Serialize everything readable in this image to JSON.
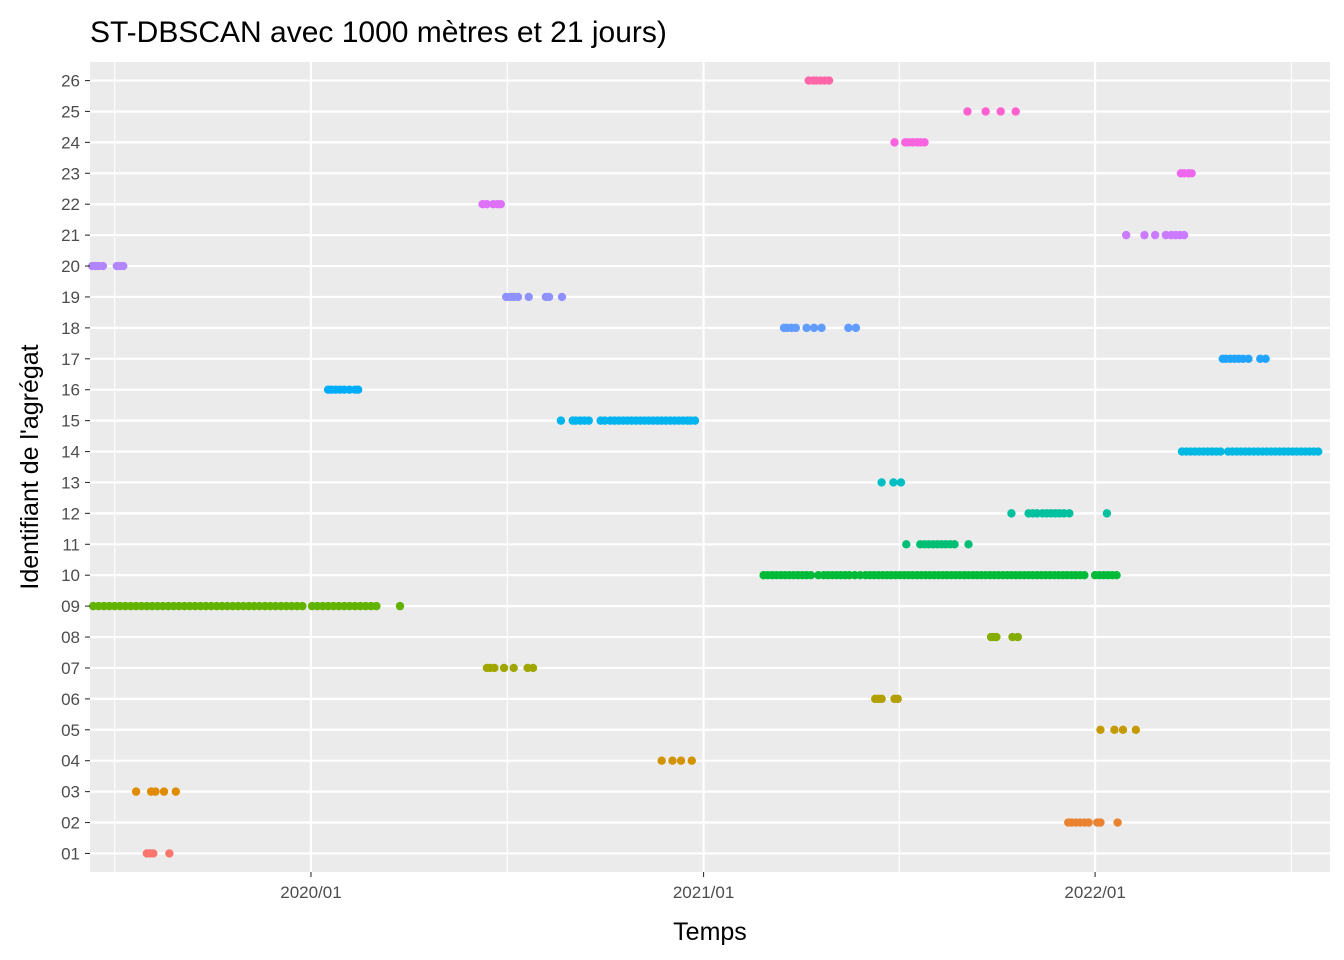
{
  "chart_data": {
    "type": "scatter",
    "title": "ST-DBSCAN avec 1000 mètres et 21 jours)",
    "xlabel": "Temps",
    "ylabel": "Identifiant de l'agrégat",
    "x_axis_type": "date",
    "xlim": [
      "2019-06-09",
      "2022-08-08"
    ],
    "x_ticks": [
      "2020-01-01",
      "2021-01-01",
      "2022-01-01"
    ],
    "x_tick_labels": [
      "2020/01",
      "2021/01",
      "2022/01"
    ],
    "y_categories": [
      "01",
      "02",
      "03",
      "04",
      "05",
      "06",
      "07",
      "08",
      "09",
      "10",
      "11",
      "12",
      "13",
      "14",
      "15",
      "16",
      "17",
      "18",
      "19",
      "20",
      "21",
      "22",
      "23",
      "24",
      "25",
      "26"
    ],
    "grid": true,
    "legend": "none",
    "panel_background": "#ebebeb",
    "grid_color": "#ffffff",
    "series": [
      {
        "cluster": "01",
        "color": "#F8766D",
        "x": [
          "2019-08-01",
          "2019-08-04",
          "2019-08-07",
          "2019-08-22"
        ]
      },
      {
        "cluster": "02",
        "color": "#EA8331",
        "x": [
          "2021-12-07",
          "2021-12-10",
          "2021-12-14",
          "2021-12-18",
          "2021-12-22",
          "2021-12-26",
          "2022-01-03",
          "2022-01-06",
          "2022-01-22"
        ]
      },
      {
        "cluster": "03",
        "color": "#E08B00",
        "x": [
          "2019-07-22",
          "2019-08-05",
          "2019-08-09",
          "2019-08-17",
          "2019-08-28"
        ]
      },
      {
        "cluster": "04",
        "color": "#D39200",
        "x": [
          "2020-11-23",
          "2020-12-03",
          "2020-12-11",
          "2020-12-21"
        ]
      },
      {
        "cluster": "05",
        "color": "#C49A00",
        "x": [
          "2022-01-06",
          "2022-01-19",
          "2022-01-27",
          "2022-02-08"
        ]
      },
      {
        "cluster": "06",
        "color": "#B3A000",
        "x": [
          "2021-06-10",
          "2021-06-13",
          "2021-06-16",
          "2021-06-28",
          "2021-07-01"
        ]
      },
      {
        "cluster": "07",
        "color": "#9FA600",
        "x": [
          "2020-06-13",
          "2020-06-16",
          "2020-06-20",
          "2020-06-29",
          "2020-07-08",
          "2020-07-21",
          "2020-07-26"
        ]
      },
      {
        "cluster": "08",
        "color": "#85AD00",
        "x": [
          "2021-09-26",
          "2021-09-28",
          "2021-10-01",
          "2021-10-16",
          "2021-10-21"
        ]
      },
      {
        "cluster": "09",
        "color": "#62B200",
        "x": [
          "2019-06-12",
          "2019-06-17",
          "2019-06-22",
          "2019-06-27",
          "2019-07-02",
          "2019-07-07",
          "2019-07-12",
          "2019-07-17",
          "2019-07-22",
          "2019-07-27",
          "2019-08-01",
          "2019-08-06",
          "2019-08-11",
          "2019-08-16",
          "2019-08-21",
          "2019-08-26",
          "2019-08-31",
          "2019-09-05",
          "2019-09-10",
          "2019-09-15",
          "2019-09-20",
          "2019-09-25",
          "2019-09-30",
          "2019-10-05",
          "2019-10-10",
          "2019-10-15",
          "2019-10-20",
          "2019-10-25",
          "2019-10-30",
          "2019-11-04",
          "2019-11-09",
          "2019-11-14",
          "2019-11-19",
          "2019-11-24",
          "2019-11-29",
          "2019-12-04",
          "2019-12-09",
          "2019-12-14",
          "2019-12-19",
          "2019-12-24",
          "2020-01-02",
          "2020-01-07",
          "2020-01-12",
          "2020-01-17",
          "2020-01-22",
          "2020-01-27",
          "2020-02-01",
          "2020-02-06",
          "2020-02-11",
          "2020-02-16",
          "2020-02-21",
          "2020-02-26",
          "2020-03-02",
          "2020-03-24"
        ]
      },
      {
        "cluster": "10",
        "color": "#00BA38",
        "x": [
          "2021-02-26",
          "2021-03-02",
          "2021-03-06",
          "2021-03-10",
          "2021-03-14",
          "2021-03-18",
          "2021-03-22",
          "2021-03-26",
          "2021-03-30",
          "2021-04-03",
          "2021-04-07",
          "2021-04-11",
          "2021-04-18",
          "2021-04-23",
          "2021-04-27",
          "2021-05-01",
          "2021-05-05",
          "2021-05-09",
          "2021-05-13",
          "2021-05-17",
          "2021-05-22",
          "2021-05-27",
          "2021-06-01",
          "2021-06-05",
          "2021-06-09",
          "2021-06-13",
          "2021-06-17",
          "2021-06-21",
          "2021-06-25",
          "2021-06-29",
          "2021-07-03",
          "2021-07-07",
          "2021-07-11",
          "2021-07-15",
          "2021-07-19",
          "2021-07-23",
          "2021-07-27",
          "2021-07-31",
          "2021-08-04",
          "2021-08-08",
          "2021-08-12",
          "2021-08-16",
          "2021-08-20",
          "2021-08-24",
          "2021-08-28",
          "2021-09-01",
          "2021-09-05",
          "2021-09-09",
          "2021-09-13",
          "2021-09-17",
          "2021-09-21",
          "2021-09-25",
          "2021-09-29",
          "2021-10-03",
          "2021-10-07",
          "2021-10-11",
          "2021-10-15",
          "2021-10-19",
          "2021-10-23",
          "2021-10-27",
          "2021-10-31",
          "2021-11-04",
          "2021-11-08",
          "2021-11-12",
          "2021-11-16",
          "2021-11-20",
          "2021-11-24",
          "2021-11-28",
          "2021-12-02",
          "2021-12-06",
          "2021-12-10",
          "2021-12-14",
          "2021-12-18",
          "2021-12-22",
          "2022-01-01",
          "2022-01-05",
          "2022-01-09",
          "2022-01-13",
          "2022-01-17",
          "2022-01-21"
        ]
      },
      {
        "cluster": "11",
        "color": "#00BF74",
        "x": [
          "2021-07-09",
          "2021-07-22",
          "2021-07-26",
          "2021-07-30",
          "2021-08-03",
          "2021-08-07",
          "2021-08-11",
          "2021-08-15",
          "2021-08-19",
          "2021-08-23",
          "2021-09-05"
        ]
      },
      {
        "cluster": "12",
        "color": "#00C19F",
        "x": [
          "2021-10-15",
          "2021-10-31",
          "2021-11-04",
          "2021-11-08",
          "2021-11-13",
          "2021-11-17",
          "2021-11-21",
          "2021-11-25",
          "2021-11-29",
          "2021-12-03",
          "2021-12-08",
          "2022-01-12"
        ]
      },
      {
        "cluster": "13",
        "color": "#00BFC4",
        "x": [
          "2021-06-16",
          "2021-06-27",
          "2021-07-04"
        ]
      },
      {
        "cluster": "14",
        "color": "#00B9E3",
        "x": [
          "2022-03-23",
          "2022-03-27",
          "2022-03-31",
          "2022-04-04",
          "2022-04-08",
          "2022-04-12",
          "2022-04-16",
          "2022-04-20",
          "2022-04-24",
          "2022-04-28",
          "2022-05-05",
          "2022-05-09",
          "2022-05-13",
          "2022-05-17",
          "2022-05-21",
          "2022-05-25",
          "2022-05-29",
          "2022-06-02",
          "2022-06-06",
          "2022-06-10",
          "2022-06-14",
          "2022-06-18",
          "2022-06-22",
          "2022-06-26",
          "2022-06-30",
          "2022-07-04",
          "2022-07-08",
          "2022-07-12",
          "2022-07-16",
          "2022-07-20",
          "2022-07-24",
          "2022-07-28"
        ]
      },
      {
        "cluster": "15",
        "color": "#00B4EF",
        "x": [
          "2020-08-21",
          "2020-09-01",
          "2020-09-04",
          "2020-09-08",
          "2020-09-12",
          "2020-09-16",
          "2020-09-27",
          "2020-10-01",
          "2020-10-06",
          "2020-10-10",
          "2020-10-14",
          "2020-10-18",
          "2020-10-22",
          "2020-10-26",
          "2020-10-30",
          "2020-11-03",
          "2020-11-07",
          "2020-11-11",
          "2020-11-15",
          "2020-11-19",
          "2020-11-23",
          "2020-11-27",
          "2020-12-01",
          "2020-12-05",
          "2020-12-09",
          "2020-12-13",
          "2020-12-17",
          "2020-12-20",
          "2020-12-24"
        ]
      },
      {
        "cluster": "16",
        "color": "#00ADFA",
        "x": [
          "2020-01-17",
          "2020-01-20",
          "2020-01-24",
          "2020-01-28",
          "2020-02-01",
          "2020-02-06",
          "2020-02-11",
          "2020-02-14"
        ]
      },
      {
        "cluster": "17",
        "color": "#20A4FF",
        "x": [
          "2022-04-30",
          "2022-05-03",
          "2022-05-07",
          "2022-05-11",
          "2022-05-15",
          "2022-05-19",
          "2022-05-24",
          "2022-06-04",
          "2022-06-09"
        ]
      },
      {
        "cluster": "18",
        "color": "#619CFF",
        "x": [
          "2021-03-17",
          "2021-03-20",
          "2021-03-24",
          "2021-03-28",
          "2021-04-07",
          "2021-04-14",
          "2021-04-21",
          "2021-05-16",
          "2021-05-23"
        ]
      },
      {
        "cluster": "19",
        "color": "#8F91FF",
        "x": [
          "2020-07-01",
          "2020-07-05",
          "2020-07-08",
          "2020-07-12",
          "2020-07-22",
          "2020-08-07",
          "2020-08-10",
          "2020-08-22"
        ]
      },
      {
        "cluster": "20",
        "color": "#B186FF",
        "x": [
          "2019-06-11",
          "2019-06-14",
          "2019-06-17",
          "2019-06-21",
          "2019-07-04",
          "2019-07-07",
          "2019-07-10"
        ]
      },
      {
        "cluster": "21",
        "color": "#CB7BFF",
        "x": [
          "2022-01-30",
          "2022-02-16",
          "2022-02-26",
          "2022-03-08",
          "2022-03-13",
          "2022-03-17",
          "2022-03-21",
          "2022-03-25"
        ]
      },
      {
        "cluster": "22",
        "color": "#DF70F8",
        "x": [
          "2020-06-09",
          "2020-06-13",
          "2020-06-19",
          "2020-06-23",
          "2020-06-26"
        ]
      },
      {
        "cluster": "23",
        "color": "#ED68ED",
        "x": [
          "2022-03-22",
          "2022-03-25",
          "2022-03-29",
          "2022-04-01"
        ]
      },
      {
        "cluster": "24",
        "color": "#F864E0",
        "x": [
          "2021-06-28",
          "2021-07-08",
          "2021-07-11",
          "2021-07-15",
          "2021-07-19",
          "2021-07-22",
          "2021-07-26"
        ]
      },
      {
        "cluster": "25",
        "color": "#FE61CF",
        "x": [
          "2021-09-04",
          "2021-09-21",
          "2021-10-05",
          "2021-10-19"
        ]
      },
      {
        "cluster": "26",
        "color": "#FF66A8",
        "x": [
          "2021-04-09",
          "2021-04-13",
          "2021-04-16",
          "2021-04-20",
          "2021-04-24",
          "2021-04-28"
        ]
      }
    ]
  }
}
